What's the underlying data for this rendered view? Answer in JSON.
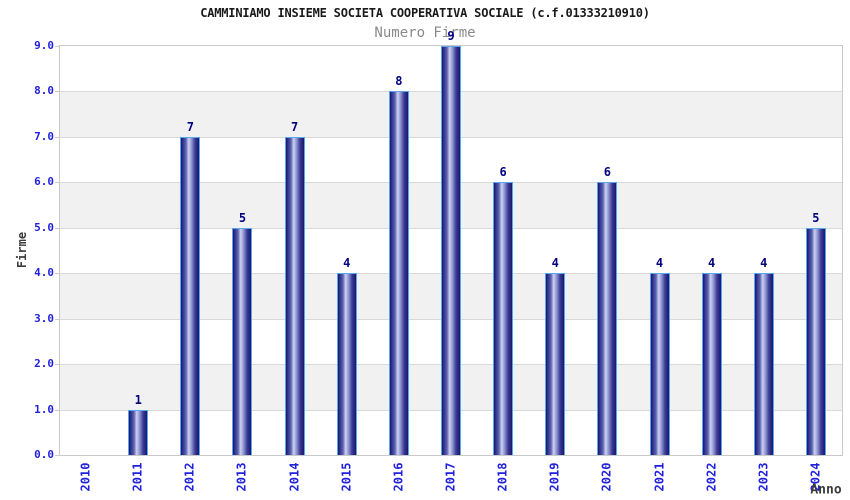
{
  "header": {
    "title": "CAMMINIAMO INSIEME SOCIETA COOPERATIVA SOCIALE (c.f.01333210910)",
    "subtitle": "Numero Firme"
  },
  "chart_data": {
    "type": "bar",
    "title": "CAMMINIAMO INSIEME SOCIETA COOPERATIVA SOCIALE (c.f.01333210910)",
    "subtitle": "Numero Firme",
    "xlabel": "Anno",
    "ylabel": "Firme",
    "categories": [
      "2010",
      "2011",
      "2012",
      "2013",
      "2014",
      "2015",
      "2016",
      "2017",
      "2018",
      "2019",
      "2020",
      "2021",
      "2022",
      "2023",
      "2024"
    ],
    "values": [
      0,
      1,
      7,
      5,
      7,
      4,
      8,
      9,
      6,
      4,
      6,
      4,
      4,
      4,
      5
    ],
    "bar_labels": [
      "",
      "1",
      "7",
      "5",
      "7",
      "4",
      "8",
      "9",
      "6",
      "4",
      "6",
      "4",
      "4",
      "4",
      "5"
    ],
    "ylim": [
      0,
      9
    ],
    "yticks": [
      "0.0",
      "1.0",
      "2.0",
      "3.0",
      "4.0",
      "5.0",
      "6.0",
      "7.0",
      "8.0",
      "9.0"
    ],
    "grid": "horizontal-alternating-bands",
    "legend_position": "none"
  },
  "colors": {
    "title": "#1a1a1a",
    "subtitle": "#8a8a8a",
    "tick_label": "#2222dd",
    "axis_title": "#3c3c3c",
    "bar_value_label": "#000080",
    "bar_border": "#55a7ee",
    "bar_gradient_dark": "#17176b",
    "bar_gradient_mid": "#5d64b0",
    "bar_gradient_light": "#ccd1f0",
    "band_white": "#ffffff",
    "band_gray": "#f1f1f1",
    "gridline": "#d9d9d9",
    "plot_border": "#c9c9c9",
    "background": "#ffffff"
  }
}
